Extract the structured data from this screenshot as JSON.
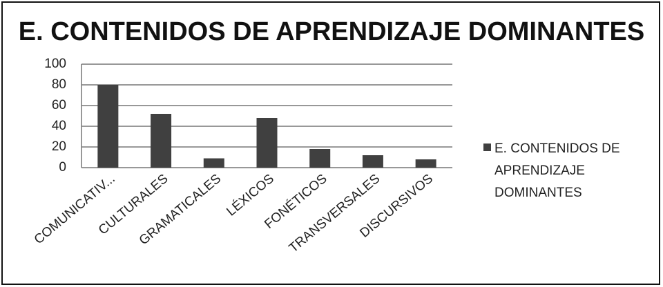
{
  "chart_data": {
    "type": "bar",
    "title": "E. CONTENIDOS DE APRENDIZAJE DOMINANTES",
    "categories": [
      "COMUNICATIV...",
      "CULTURALES",
      "GRAMATICALES",
      "LÉXICOS",
      "FONÉTICOS",
      "TRANSVERSALES",
      "DISCURSIVOS"
    ],
    "series": [
      {
        "name": "E. CONTENIDOS DE APRENDIZAJE DOMINANTES",
        "color": "#404040",
        "values": [
          80,
          52,
          9,
          48,
          18,
          12,
          8
        ]
      }
    ],
    "ylim": [
      0,
      100
    ],
    "yticks": [
      0,
      20,
      40,
      60,
      80,
      100
    ],
    "grid": true,
    "legend": "right"
  }
}
